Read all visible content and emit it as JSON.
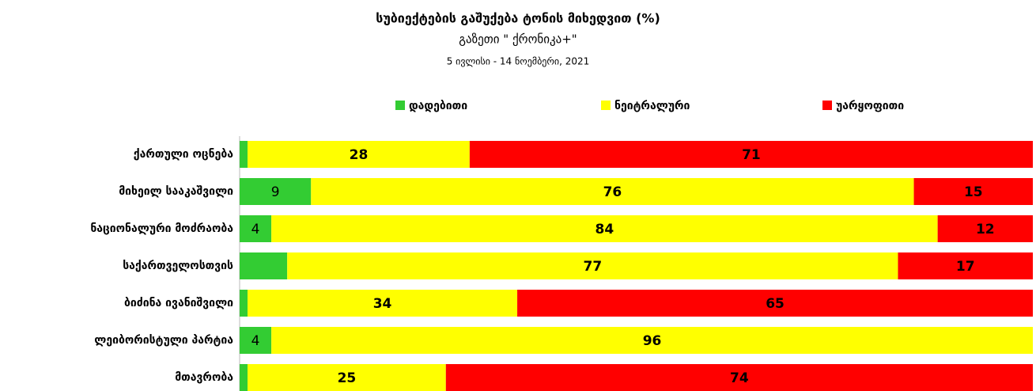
{
  "chart_data": {
    "type": "stacked-barh",
    "title": "სუბიექტების გაშუქება ტონის მიხედვით (%)",
    "subtitle": "გაზეთი \" ქრონიკა+\"",
    "date_range": "5 ივლისი - 14 ნოემბერი, 2021",
    "categories": [
      "ქართული ოცნება",
      "მიხეილ სააკაშვილი",
      "ნაციონალური მოძრაობა",
      "საქართველოსთვის",
      "ბიძინა ივანიშვილი",
      "ლეიბორისტული პარტია",
      "მთავრობა"
    ],
    "series": [
      {
        "name": "დადებითი",
        "color": "#33cc33",
        "values": [
          1,
          9,
          4,
          6,
          1,
          4,
          1
        ],
        "value_labels": [
          null,
          "9",
          "4",
          null,
          null,
          "4",
          null
        ]
      },
      {
        "name": "ნეიტრალური",
        "color": "#ffff00",
        "values": [
          28,
          76,
          84,
          77,
          34,
          96,
          25
        ],
        "value_labels": [
          "28",
          "76",
          "84",
          "77",
          "34",
          "96",
          "25"
        ]
      },
      {
        "name": "უარყოფითი",
        "color": "#ff0000",
        "values": [
          71,
          15,
          12,
          17,
          65,
          0,
          74
        ],
        "value_labels": [
          "71",
          "15",
          "12",
          "17",
          "65",
          null,
          "74"
        ]
      }
    ],
    "legend": "top"
  }
}
